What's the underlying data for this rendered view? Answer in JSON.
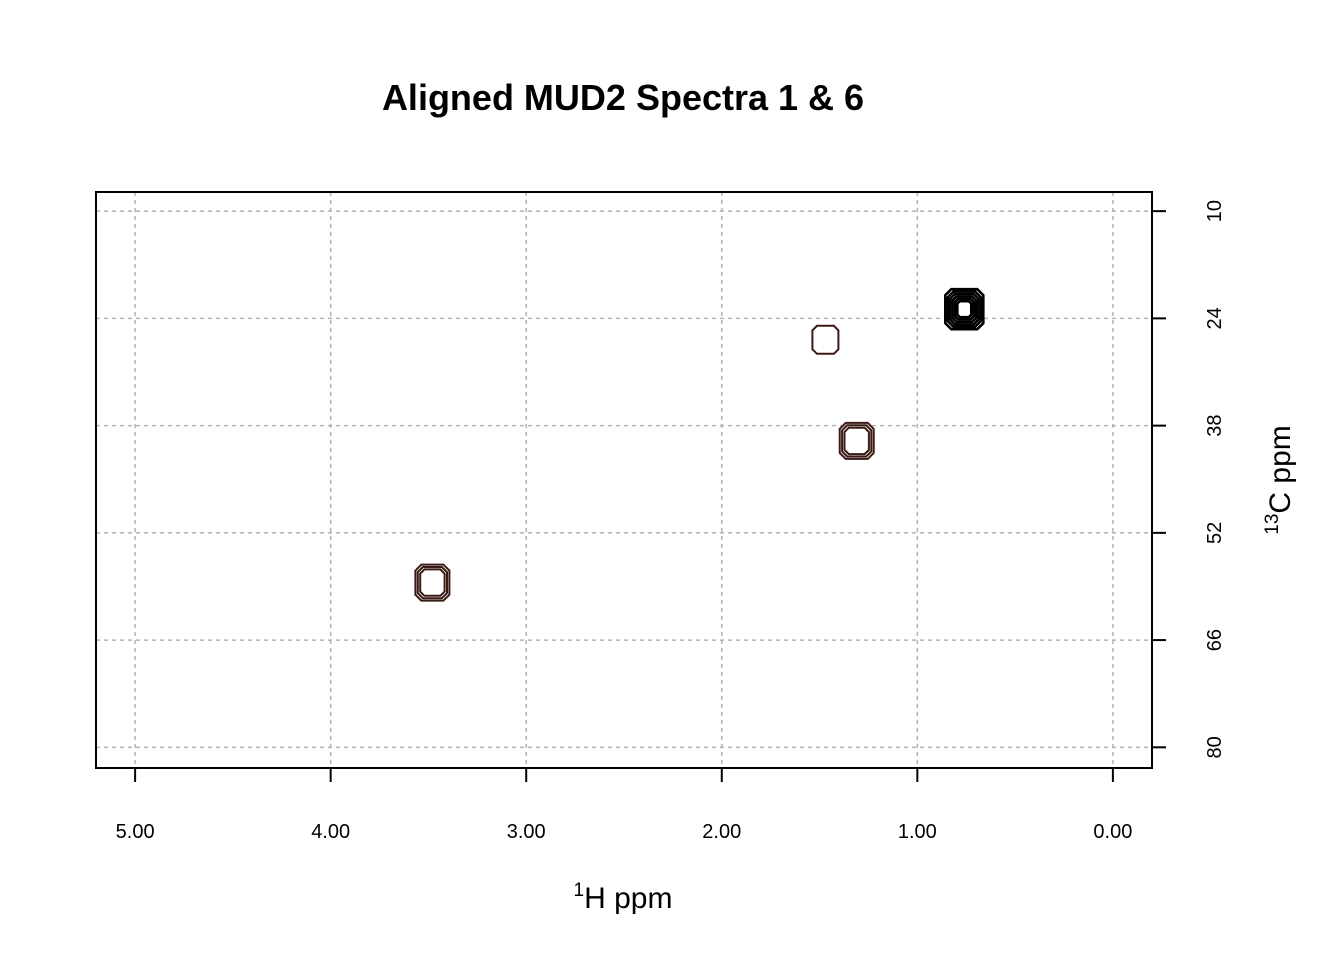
{
  "chart_data": {
    "type": "contour",
    "title": "Aligned MUD2 Spectra 1 & 6",
    "xlabel": {
      "sup": "1",
      "text": "H ppm"
    },
    "ylabel": {
      "sup": "13",
      "text": "C ppm"
    },
    "xlim": [
      5.2,
      -0.2
    ],
    "ylim": [
      7.5,
      82.7
    ],
    "x_reversed": true,
    "y_reversed": true,
    "y_axis_side": "right",
    "grid": true,
    "x_ticks": [
      5.0,
      4.0,
      3.0,
      2.0,
      1.0,
      0.0
    ],
    "x_tick_labels": [
      "5.00",
      "4.00",
      "3.00",
      "2.00",
      "1.00",
      "0.00"
    ],
    "y_ticks": [
      10,
      24,
      38,
      52,
      66,
      80
    ],
    "y_tick_labels": [
      "10",
      "24",
      "38",
      "52",
      "66",
      "80"
    ],
    "peaks": [
      {
        "x": 0.76,
        "y": 22.8,
        "levels": 6,
        "color": "#000000"
      },
      {
        "x": 1.47,
        "y": 26.8,
        "levels": 1,
        "color": "#3a1a14"
      },
      {
        "x": 1.31,
        "y": 40.0,
        "levels": 3,
        "color": "#3a1a14"
      },
      {
        "x": 3.48,
        "y": 58.5,
        "levels": 3,
        "color": "#3a1a14"
      }
    ]
  }
}
